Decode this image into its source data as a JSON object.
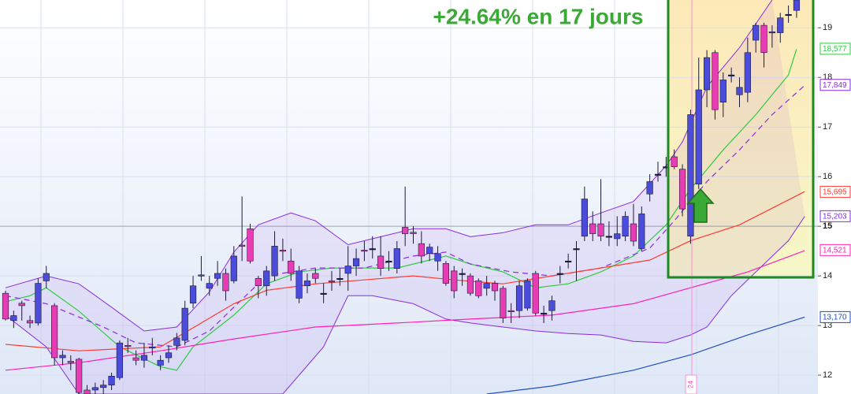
{
  "chart_data": {
    "type": "candlestick",
    "title": "+24.64% en 17 jours",
    "marker_label": "24",
    "ylim": [
      11.62,
      19.56
    ],
    "yticks": [
      12,
      13,
      14,
      15,
      16,
      17,
      18,
      19
    ],
    "highlight_tick": 15,
    "grid": true,
    "up_color": "#4b4bdc",
    "down_color": "#e83cb4",
    "candles": {
      "open": [
        13.65,
        13.1,
        13.45,
        13.1,
        13.05,
        13.9,
        13.4,
        12.35,
        12.28,
        12.32,
        11.7,
        11.7,
        11.75,
        11.8,
        11.95,
        12.6,
        12.35,
        12.3,
        12.55,
        12.2,
        12.35,
        12.6,
        12.7,
        13.45,
        14.0,
        13.75,
        13.95,
        14.05,
        13.9,
        14.62,
        14.95,
        13.95,
        13.8,
        14.0,
        14.52,
        14.3,
        13.55,
        13.8,
        14.05,
        13.65,
        13.9,
        13.95,
        14.05,
        14.2,
        14.52,
        14.55,
        14.4,
        14.3,
        14.15,
        14.98,
        14.88,
        14.65,
        14.45,
        14.3,
        14.25,
        14.1,
        14.05,
        14.0,
        13.9,
        13.75,
        13.85,
        13.75,
        13.3,
        13.3,
        13.35,
        14.05,
        13.25,
        13.3,
        14.05,
        14.3,
        14.55,
        14.8,
        15.05,
        15.05,
        14.8,
        14.75,
        14.8,
        15.05,
        14.55,
        15.65,
        16.05,
        16.2,
        16.4,
        16.15,
        14.8,
        15.85,
        17.75,
        18.5,
        17.5,
        18.05,
        17.65,
        17.7,
        18.75,
        19.05,
        18.9,
        18.9,
        19.27,
        19.35
      ],
      "high": [
        13.7,
        13.3,
        13.5,
        13.2,
        13.95,
        14.2,
        13.45,
        12.5,
        12.4,
        12.35,
        11.8,
        11.85,
        11.9,
        12.05,
        12.7,
        12.75,
        12.5,
        12.65,
        12.75,
        12.4,
        12.6,
        12.85,
        13.5,
        14.0,
        14.4,
        14.0,
        14.3,
        14.15,
        14.6,
        15.6,
        15.05,
        14.0,
        14.2,
        14.9,
        14.75,
        14.55,
        14.2,
        14.05,
        14.15,
        13.85,
        14.1,
        14.15,
        14.6,
        14.55,
        14.7,
        14.8,
        14.8,
        14.5,
        14.7,
        15.8,
        15.0,
        14.9,
        14.65,
        14.6,
        14.3,
        14.2,
        14.15,
        14.05,
        13.95,
        14.0,
        13.9,
        13.8,
        13.45,
        13.9,
        13.95,
        14.1,
        13.4,
        13.6,
        14.2,
        14.45,
        14.7,
        15.8,
        15.3,
        15.95,
        15.1,
        15.2,
        15.3,
        15.45,
        15.4,
        16.05,
        16.3,
        16.4,
        16.55,
        16.25,
        17.35,
        18.4,
        18.55,
        18.55,
        18.1,
        18.2,
        18.0,
        18.8,
        19.1,
        19.1,
        19.05,
        19.3,
        19.45,
        19.56
      ],
      "low": [
        13.1,
        12.95,
        13.1,
        12.95,
        13.0,
        13.75,
        12.2,
        12.2,
        12.1,
        11.62,
        11.62,
        11.62,
        11.62,
        11.7,
        11.9,
        12.45,
        12.2,
        12.15,
        12.4,
        12.1,
        12.25,
        12.5,
        12.6,
        13.35,
        13.9,
        13.6,
        13.8,
        13.5,
        13.85,
        14.3,
        14.25,
        13.55,
        13.6,
        13.9,
        14.3,
        13.9,
        13.45,
        13.65,
        13.85,
        13.45,
        13.7,
        13.8,
        13.7,
        14.0,
        14.3,
        14.35,
        14.0,
        14.1,
        14.05,
        14.6,
        14.65,
        14.25,
        14.3,
        14.1,
        13.8,
        13.55,
        13.8,
        13.6,
        13.55,
        13.6,
        13.5,
        13.05,
        13.05,
        13.15,
        13.3,
        13.2,
        13.05,
        13.1,
        13.85,
        14.15,
        13.9,
        14.7,
        14.7,
        14.7,
        14.6,
        14.6,
        14.7,
        14.6,
        14.5,
        15.5,
        15.9,
        16.0,
        16.15,
        15.2,
        14.65,
        15.75,
        17.4,
        17.15,
        17.2,
        17.9,
        17.4,
        17.5,
        18.5,
        18.2,
        18.6,
        18.7,
        19.1,
        19.2
      ],
      "close": [
        13.13,
        13.2,
        13.4,
        13.05,
        13.85,
        14.05,
        12.35,
        12.4,
        12.25,
        11.65,
        11.62,
        11.75,
        11.8,
        11.98,
        12.65,
        12.58,
        12.3,
        12.4,
        12.57,
        12.3,
        12.45,
        12.75,
        13.35,
        13.8,
        14.02,
        13.85,
        14.05,
        13.7,
        14.4,
        14.6,
        14.3,
        13.8,
        14.1,
        14.6,
        14.5,
        14.05,
        14.1,
        13.9,
        13.95,
        13.65,
        13.88,
        13.95,
        14.2,
        14.35,
        14.5,
        14.55,
        14.15,
        14.3,
        14.55,
        14.85,
        14.85,
        14.4,
        14.58,
        14.45,
        13.85,
        13.7,
        14.05,
        13.65,
        13.6,
        13.85,
        13.7,
        13.15,
        13.28,
        13.8,
        13.9,
        13.25,
        13.25,
        13.5,
        14.05,
        14.3,
        14.55,
        15.55,
        14.85,
        14.8,
        14.8,
        14.85,
        15.2,
        14.7,
        15.25,
        15.9,
        16.05,
        16.2,
        16.2,
        15.35,
        17.25,
        17.75,
        18.4,
        17.35,
        17.95,
        18.05,
        17.8,
        18.5,
        19.05,
        18.5,
        18.92,
        19.2,
        19.27,
        19.56
      ]
    },
    "band": {
      "color": "#8a2be2",
      "upper": {
        "x": [
          0,
          5,
          9,
          13,
          17,
          21,
          25,
          28,
          31,
          35,
          38,
          42,
          46,
          50,
          54,
          57,
          61,
          65,
          69,
          73,
          77,
          81,
          83,
          86,
          90,
          94
        ],
        "values": [
          13.76,
          14.0,
          13.84,
          13.37,
          12.89,
          12.97,
          13.68,
          14.48,
          15.03,
          15.27,
          15.11,
          14.63,
          14.79,
          14.95,
          14.95,
          14.79,
          14.87,
          15.03,
          15.03,
          15.27,
          15.5,
          16.22,
          16.7,
          17.81,
          18.6,
          19.56
        ]
      },
      "lower": {
        "x": [
          0,
          5,
          9,
          34,
          39,
          42,
          45,
          50,
          54,
          57,
          61,
          65,
          69,
          73,
          77,
          81,
          84,
          86,
          89,
          92,
          96,
          98
        ],
        "values": [
          13.21,
          12.57,
          11.62,
          11.62,
          12.57,
          13.6,
          13.6,
          13.44,
          13.13,
          13.05,
          12.97,
          12.89,
          12.84,
          12.81,
          12.68,
          12.65,
          12.81,
          12.97,
          13.6,
          14.08,
          14.71,
          15.2
        ]
      }
    },
    "lines": [
      {
        "color": "#2ecc40",
        "dashed": false,
        "x": [
          0,
          3,
          5,
          9,
          14,
          19,
          21,
          23,
          28,
          32,
          36,
          40,
          44,
          48,
          52,
          54,
          57,
          61,
          65,
          69,
          73,
          77,
          81,
          84,
          88,
          92,
          96,
          97
        ],
        "values": [
          13.48,
          13.6,
          13.76,
          13.29,
          12.57,
          12.17,
          12.1,
          12.57,
          13.21,
          13.84,
          14.08,
          14.16,
          14.16,
          14.16,
          14.32,
          14.4,
          14.24,
          14.08,
          13.76,
          13.84,
          14.08,
          14.4,
          15.03,
          15.75,
          16.54,
          17.25,
          18.05,
          18.57
        ]
      },
      {
        "color": "#8a2be2",
        "dashed": true,
        "x": [
          0,
          5,
          12,
          16,
          21,
          25,
          28,
          32,
          38,
          44,
          50,
          54,
          57,
          62,
          67,
          73,
          79,
          82,
          86,
          90,
          94,
          98
        ],
        "values": [
          13.6,
          13.44,
          12.97,
          12.65,
          12.57,
          12.89,
          13.37,
          14.0,
          14.16,
          14.16,
          14.4,
          14.48,
          14.24,
          14.08,
          14.0,
          14.16,
          14.56,
          15.11,
          15.9,
          16.54,
          17.25,
          17.84
        ]
      },
      {
        "color": "#ff3b30",
        "dashed": false,
        "x": [
          0,
          9,
          19,
          24,
          28,
          32,
          38,
          44,
          50,
          55,
          61,
          67,
          73,
          79,
          84,
          90,
          98
        ],
        "values": [
          12.62,
          12.49,
          12.57,
          13.05,
          13.44,
          13.71,
          13.84,
          13.92,
          14.0,
          13.92,
          13.84,
          14.0,
          14.16,
          14.32,
          14.71,
          15.03,
          15.7
        ]
      },
      {
        "color": "#ff1fb4",
        "dashed": false,
        "x": [
          0,
          9,
          19,
          28,
          38,
          48,
          57,
          67,
          77,
          84,
          91,
          98
        ],
        "values": [
          12.1,
          12.25,
          12.49,
          12.73,
          12.97,
          13.05,
          13.13,
          13.21,
          13.44,
          13.76,
          14.08,
          14.51
        ]
      },
      {
        "color": "#1f4fbf",
        "dashed": false,
        "x": [
          59,
          67,
          77,
          84,
          91,
          98
        ],
        "values": [
          11.62,
          11.78,
          12.1,
          12.41,
          12.81,
          13.17
        ]
      }
    ],
    "price_labels": [
      {
        "value": 18.577,
        "label": "18,577",
        "color": "#2ecc40"
      },
      {
        "value": 17.849,
        "label": "17,849",
        "color": "#8a2be2"
      },
      {
        "value": 15.695,
        "label": "15,695",
        "color": "#ff3b30"
      },
      {
        "value": 15.203,
        "label": "15,203",
        "color": "#8a2be2"
      },
      {
        "value": 14.521,
        "label": "14,521",
        "color": "#ff1fb4"
      },
      {
        "value": 13.17,
        "label": "13,170",
        "color": "#1f4fbf"
      }
    ]
  }
}
